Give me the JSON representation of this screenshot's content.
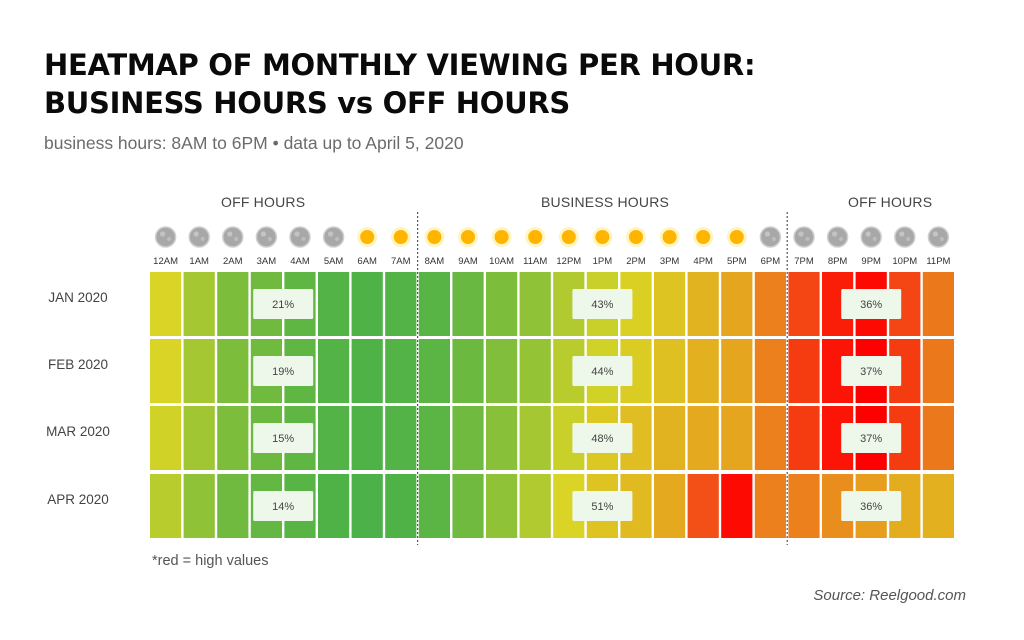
{
  "title_line1": "HEATMAP OF MONTHLY VIEWING PER HOUR:",
  "title_line2": "BUSINESS HOURS vs OFF HOURS",
  "subtitle": "business hours: 8AM to 6PM • data up to April 5, 2020",
  "footnote": "*red = high values",
  "source": "Source: Reelgood.com",
  "colors": {
    "low": "#3fae4b",
    "mid": "#d9d425",
    "high": "#ff0000",
    "divider": "#555555",
    "badge_bg": "#edf7ea"
  },
  "chart_data": {
    "type": "heatmap",
    "sections": [
      {
        "label": "OFF HOURS",
        "hours": [
          "12AM",
          "1AM",
          "2AM",
          "3AM",
          "4AM",
          "5AM",
          "6AM",
          "7AM"
        ]
      },
      {
        "label": "BUSINESS HOURS",
        "hours": [
          "8AM",
          "9AM",
          "10AM",
          "11AM",
          "12PM",
          "1PM",
          "2PM",
          "3PM",
          "4PM",
          "5PM",
          "6PM"
        ]
      },
      {
        "label": "OFF HOURS",
        "hours": [
          "7PM",
          "8PM",
          "9PM",
          "10PM",
          "11PM"
        ]
      }
    ],
    "hours": [
      "12AM",
      "1AM",
      "2AM",
      "3AM",
      "4AM",
      "5AM",
      "6AM",
      "7AM",
      "8AM",
      "9AM",
      "10AM",
      "11AM",
      "12PM",
      "1PM",
      "2PM",
      "3PM",
      "4PM",
      "5PM",
      "6PM",
      "7PM",
      "8PM",
      "9PM",
      "10PM",
      "11PM"
    ],
    "hour_icons": [
      "moon",
      "moon",
      "moon",
      "moon",
      "moon",
      "moon",
      "sun",
      "sun",
      "sun",
      "sun",
      "sun",
      "sun",
      "sun",
      "sun",
      "sun",
      "sun",
      "sun",
      "sun",
      "moon",
      "moon",
      "moon",
      "moon",
      "moon",
      "moon"
    ],
    "months": [
      "JAN 2020",
      "FEB 2020",
      "MAR 2020",
      "APR 2020"
    ],
    "intensity": [
      [
        0.38,
        0.25,
        0.15,
        0.12,
        0.08,
        0.05,
        0.04,
        0.05,
        0.06,
        0.1,
        0.15,
        0.2,
        0.28,
        0.34,
        0.4,
        0.46,
        0.55,
        0.62,
        0.72,
        0.86,
        0.94,
        0.98,
        0.86,
        0.74
      ],
      [
        0.38,
        0.25,
        0.15,
        0.12,
        0.08,
        0.05,
        0.04,
        0.05,
        0.07,
        0.11,
        0.16,
        0.21,
        0.3,
        0.36,
        0.42,
        0.48,
        0.56,
        0.62,
        0.72,
        0.88,
        0.96,
        1.0,
        0.88,
        0.74
      ],
      [
        0.36,
        0.24,
        0.15,
        0.11,
        0.08,
        0.05,
        0.04,
        0.05,
        0.07,
        0.12,
        0.18,
        0.25,
        0.34,
        0.44,
        0.5,
        0.55,
        0.6,
        0.62,
        0.72,
        0.88,
        0.96,
        1.0,
        0.88,
        0.74
      ],
      [
        0.3,
        0.2,
        0.12,
        0.09,
        0.06,
        0.04,
        0.03,
        0.04,
        0.07,
        0.12,
        0.2,
        0.28,
        0.38,
        0.46,
        0.52,
        0.6,
        0.84,
        0.98,
        0.72,
        0.72,
        0.68,
        0.64,
        0.58,
        0.56
      ]
    ],
    "section_shares": [
      {
        "month": "JAN 2020",
        "off_hours_morning": "21%",
        "business_hours": "43%",
        "off_hours_evening": "36%"
      },
      {
        "month": "FEB 2020",
        "off_hours_morning": "19%",
        "business_hours": "44%",
        "off_hours_evening": "37%"
      },
      {
        "month": "MAR 2020",
        "off_hours_morning": "15%",
        "business_hours": "48%",
        "off_hours_evening": "37%"
      },
      {
        "month": "APR 2020",
        "off_hours_morning": "14%",
        "business_hours": "51%",
        "off_hours_evening": "36%"
      }
    ],
    "color_scale": [
      "green",
      "yellow",
      "red"
    ]
  }
}
